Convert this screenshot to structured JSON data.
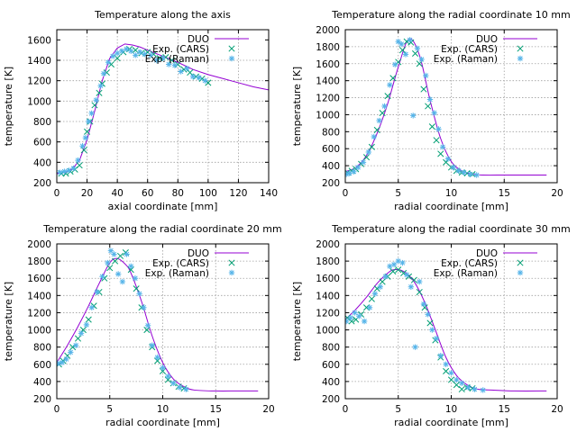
{
  "chart_data": [
    {
      "type": "line",
      "title": "Temperature along the axis",
      "xlabel": "axial coordinate [mm]",
      "ylabel": "temperature [K]",
      "xlim": [
        0,
        140
      ],
      "ylim": [
        200,
        1700
      ],
      "xticks": [
        0,
        20,
        40,
        60,
        80,
        100,
        120,
        140
      ],
      "yticks": [
        200,
        400,
        600,
        800,
        1000,
        1200,
        1400,
        1600
      ],
      "grid": true,
      "legend_position": "top-right",
      "series": [
        {
          "name": "DUO",
          "kind": "line",
          "color": "#9400d3",
          "x": [
            0,
            5,
            10,
            15,
            20,
            25,
            30,
            35,
            40,
            45,
            50,
            55,
            60,
            70,
            80,
            90,
            100,
            110,
            120,
            130,
            140
          ],
          "y": [
            290,
            300,
            330,
            420,
            620,
            900,
            1200,
            1420,
            1520,
            1560,
            1550,
            1530,
            1500,
            1440,
            1380,
            1310,
            1260,
            1220,
            1180,
            1140,
            1110
          ]
        },
        {
          "name": "Exp. (CARS)",
          "kind": "cross",
          "color": "#009e73",
          "x": [
            3,
            6,
            9,
            12,
            15,
            18,
            20,
            22,
            25,
            28,
            30,
            33,
            36,
            40,
            44,
            48,
            52,
            56,
            60,
            64,
            68,
            72,
            76,
            80,
            84,
            88,
            92,
            96,
            100
          ],
          "y": [
            290,
            290,
            310,
            330,
            370,
            520,
            700,
            800,
            960,
            1080,
            1170,
            1280,
            1360,
            1420,
            1480,
            1510,
            1500,
            1470,
            1480,
            1460,
            1420,
            1430,
            1400,
            1360,
            1310,
            1280,
            1240,
            1220,
            1180
          ]
        },
        {
          "name": "Exp. (Raman)",
          "kind": "star",
          "color": "#56b4e9",
          "x": [
            2,
            5,
            8,
            11,
            14,
            17,
            19,
            21,
            23,
            26,
            29,
            31,
            34,
            37,
            40,
            43,
            46,
            49,
            52,
            55,
            58,
            62,
            66,
            70,
            74,
            78,
            82,
            86,
            90,
            94,
            98
          ],
          "y": [
            300,
            310,
            320,
            340,
            420,
            560,
            640,
            800,
            880,
            1010,
            1150,
            1270,
            1380,
            1440,
            1470,
            1490,
            1510,
            1490,
            1450,
            1480,
            1460,
            1450,
            1400,
            1420,
            1360,
            1350,
            1290,
            1320,
            1240,
            1230,
            1200
          ]
        }
      ]
    },
    {
      "type": "line",
      "title": "Temperature along the radial coordinate 10 mm",
      "xlabel": "radial coordinate [mm]",
      "ylabel": "temperature [K]",
      "xlim": [
        0,
        20
      ],
      "ylim": [
        200,
        2000
      ],
      "xticks": [
        0,
        5,
        10,
        15,
        20
      ],
      "yticks": [
        200,
        400,
        600,
        800,
        1000,
        1200,
        1400,
        1600,
        1800,
        2000
      ],
      "grid": true,
      "legend_position": "top-right",
      "series": [
        {
          "name": "DUO",
          "kind": "line",
          "color": "#9400d3",
          "x": [
            0,
            1,
            2,
            3,
            4,
            5,
            6,
            7,
            8,
            9,
            10,
            11,
            12,
            13,
            15,
            17,
            19
          ],
          "y": [
            330,
            380,
            520,
            780,
            1130,
            1560,
            1890,
            1700,
            1170,
            720,
            450,
            340,
            300,
            290,
            290,
            290,
            290
          ],
          "smooth": true
        },
        {
          "name": "Exp. (CARS)",
          "kind": "cross",
          "color": "#009e73",
          "x": [
            0.2,
            0.6,
            1.0,
            1.5,
            2.0,
            2.5,
            3.0,
            3.5,
            4.0,
            4.5,
            5.0,
            5.4,
            5.8,
            6.2,
            6.6,
            7.0,
            7.4,
            7.8,
            8.2,
            8.6,
            9.0,
            9.5,
            10.0,
            10.5,
            11.0,
            11.5,
            12.0
          ],
          "y": [
            320,
            340,
            360,
            420,
            500,
            620,
            820,
            1020,
            1220,
            1430,
            1620,
            1760,
            1860,
            1850,
            1720,
            1600,
            1300,
            1100,
            860,
            700,
            540,
            440,
            380,
            340,
            320,
            310,
            300
          ]
        },
        {
          "name": "Exp. (Raman)",
          "kind": "star",
          "color": "#56b4e9",
          "x": [
            0.1,
            0.4,
            0.8,
            1.2,
            1.7,
            2.2,
            2.7,
            3.2,
            3.7,
            4.2,
            4.7,
            5.0,
            5.3,
            5.7,
            6.1,
            6.4,
            6.8,
            7.2,
            7.6,
            8.0,
            8.4,
            8.8,
            9.2,
            9.7,
            10.2,
            10.7,
            11.2,
            11.8,
            12.4
          ],
          "y": [
            300,
            310,
            330,
            380,
            440,
            560,
            740,
            930,
            1100,
            1350,
            1590,
            1860,
            1830,
            1710,
            1880,
            990,
            1780,
            1650,
            1460,
            1180,
            1020,
            830,
            620,
            480,
            380,
            340,
            320,
            300,
            290
          ]
        }
      ]
    },
    {
      "type": "line",
      "title": "Temperature along the radial coordinate 20 mm",
      "xlabel": "radial coordinate [mm]",
      "ylabel": "temperature [K]",
      "xlim": [
        0,
        20
      ],
      "ylim": [
        200,
        2000
      ],
      "xticks": [
        0,
        5,
        10,
        15,
        20
      ],
      "yticks": [
        200,
        400,
        600,
        800,
        1000,
        1200,
        1400,
        1600,
        1800,
        2000
      ],
      "grid": true,
      "legend_position": "top-right",
      "series": [
        {
          "name": "DUO",
          "kind": "line",
          "color": "#9400d3",
          "x": [
            0,
            1,
            2,
            3,
            4,
            5,
            5.7,
            6.5,
            7,
            8,
            9,
            10,
            11,
            12,
            13,
            15,
            17,
            19
          ],
          "y": [
            620,
            820,
            1040,
            1280,
            1540,
            1780,
            1830,
            1760,
            1660,
            1330,
            930,
            620,
            430,
            340,
            300,
            290,
            290,
            290
          ],
          "smooth": true
        },
        {
          "name": "Exp. (CARS)",
          "kind": "cross",
          "color": "#009e73",
          "x": [
            0.2,
            0.6,
            1.0,
            1.5,
            2.0,
            2.5,
            3.0,
            3.5,
            4.0,
            4.5,
            5.0,
            5.5,
            6.0,
            6.5,
            7.0,
            7.5,
            8.0,
            8.5,
            9.0,
            9.5,
            10.0,
            10.5,
            11.0,
            11.5,
            12.0
          ],
          "y": [
            600,
            640,
            700,
            800,
            900,
            1000,
            1120,
            1280,
            1440,
            1600,
            1720,
            1800,
            1860,
            1900,
            1700,
            1480,
            1260,
            1000,
            800,
            640,
            520,
            420,
            380,
            340,
            320
          ]
        },
        {
          "name": "Exp. (Raman)",
          "kind": "star",
          "color": "#56b4e9",
          "x": [
            0.1,
            0.5,
            0.9,
            1.3,
            1.8,
            2.3,
            2.8,
            3.3,
            3.8,
            4.3,
            4.8,
            5.1,
            5.4,
            5.8,
            6.2,
            6.6,
            7.0,
            7.4,
            7.8,
            8.2,
            8.6,
            9.0,
            9.5,
            10.0,
            10.5,
            11.0,
            11.6,
            12.2
          ],
          "y": [
            610,
            620,
            660,
            740,
            820,
            960,
            1060,
            1260,
            1440,
            1620,
            1780,
            1920,
            1880,
            1650,
            1560,
            1880,
            1740,
            1600,
            1420,
            1260,
            1050,
            820,
            680,
            560,
            460,
            380,
            330,
            310
          ]
        }
      ]
    },
    {
      "type": "line",
      "title": "Temperature along the radial coordinate 30 mm",
      "xlabel": "radial coordinate [mm]",
      "ylabel": "temperature [K]",
      "xlim": [
        0,
        20
      ],
      "ylim": [
        200,
        2000
      ],
      "xticks": [
        0,
        5,
        10,
        15,
        20
      ],
      "yticks": [
        200,
        400,
        600,
        800,
        1000,
        1200,
        1400,
        1600,
        1800,
        2000
      ],
      "grid": true,
      "legend_position": "top-right",
      "series": [
        {
          "name": "DUO",
          "kind": "line",
          "color": "#9400d3",
          "x": [
            0,
            1,
            2,
            3,
            4,
            4.6,
            5.5,
            6.5,
            7.5,
            8.5,
            9.5,
            10.5,
            11.5,
            12.5,
            14,
            16,
            19
          ],
          "y": [
            1120,
            1240,
            1380,
            1540,
            1660,
            1700,
            1680,
            1560,
            1320,
            1000,
            680,
            470,
            360,
            310,
            300,
            290,
            290
          ],
          "smooth": true
        },
        {
          "name": "Exp. (CARS)",
          "kind": "cross",
          "color": "#009e73",
          "x": [
            0.2,
            0.6,
            1.0,
            1.5,
            2.0,
            2.5,
            3.0,
            3.5,
            4.0,
            4.5,
            5.0,
            5.5,
            6.0,
            6.5,
            7.0,
            7.5,
            8.0,
            8.5,
            9.0,
            9.5,
            10.0,
            10.5,
            11.0,
            11.5,
            12.0
          ],
          "y": [
            1140,
            1100,
            1120,
            1180,
            1260,
            1360,
            1480,
            1560,
            1620,
            1680,
            1700,
            1660,
            1620,
            1580,
            1440,
            1260,
            1080,
            880,
            680,
            520,
            420,
            360,
            310,
            330,
            320
          ]
        },
        {
          "name": "Exp. (Raman)",
          "kind": "star",
          "color": "#56b4e9",
          "x": [
            0.1,
            0.5,
            0.9,
            1.3,
            1.8,
            2.3,
            2.8,
            3.3,
            3.8,
            4.2,
            4.6,
            5.0,
            5.4,
            5.8,
            6.2,
            6.6,
            7.0,
            7.4,
            7.8,
            8.2,
            8.6,
            9.0,
            9.5,
            10.0,
            10.5,
            11.0,
            11.6,
            12.2,
            13.0
          ],
          "y": [
            1100,
            1140,
            1200,
            1160,
            1100,
            1260,
            1420,
            1500,
            1620,
            1740,
            1760,
            1800,
            1780,
            1640,
            1500,
            800,
            1560,
            1300,
            1180,
            1000,
            900,
            700,
            600,
            500,
            420,
            380,
            330,
            310,
            300
          ]
        }
      ]
    }
  ]
}
